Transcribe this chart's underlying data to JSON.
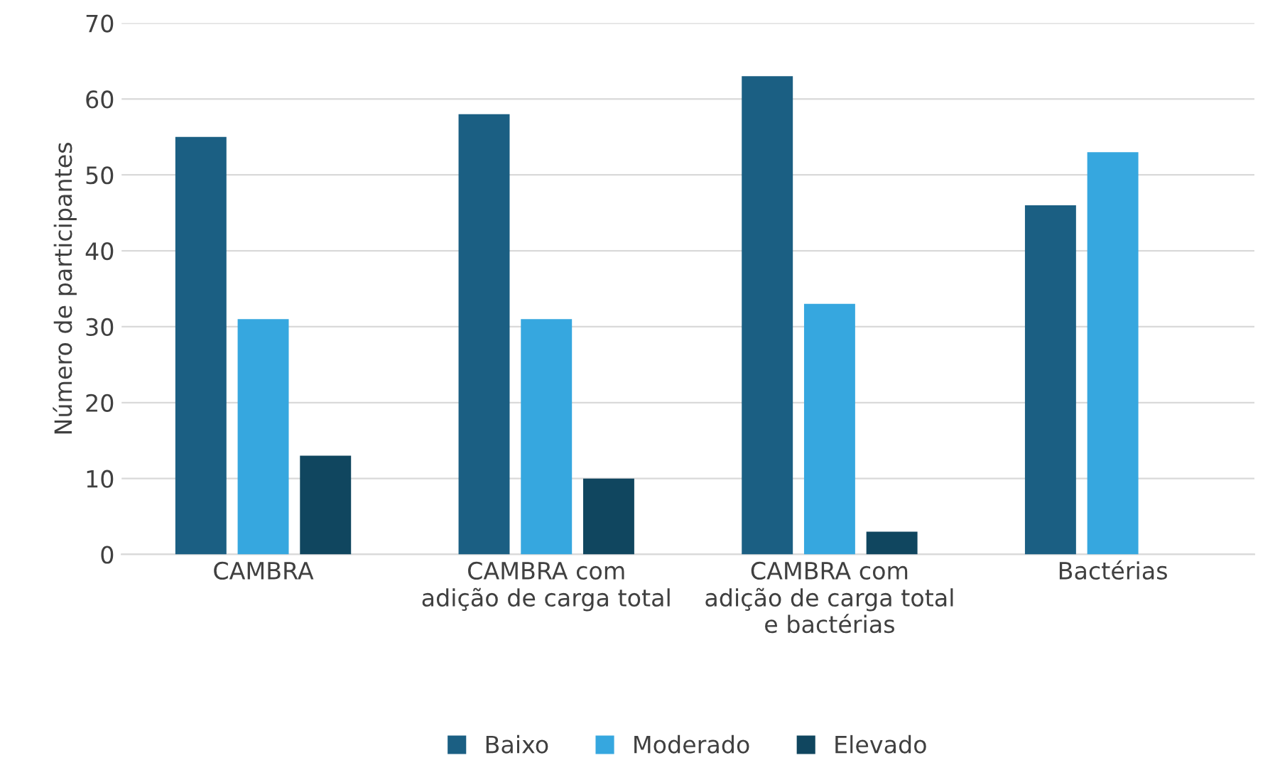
{
  "chart_data": {
    "type": "bar",
    "ylabel": "Número de participantes",
    "categories": [
      "CAMBRA",
      "CAMBRA com\nadição de carga total",
      "CAMBRA com\nadição de carga total\ne bactérias",
      "Bactérias"
    ],
    "series": [
      {
        "name": "Baixo",
        "color": "#1b5f83",
        "values": [
          55,
          58,
          63,
          46
        ]
      },
      {
        "name": "Moderado",
        "color": "#36a7df",
        "values": [
          31,
          31,
          33,
          53
        ]
      },
      {
        "name": "Elevado",
        "color": "#10465f",
        "values": [
          13,
          10,
          3,
          null
        ]
      }
    ],
    "ylim": [
      0,
      70
    ],
    "yticks": [
      0,
      10,
      20,
      30,
      40,
      50,
      60,
      70
    ],
    "grid": "y",
    "legend": "bottom"
  }
}
